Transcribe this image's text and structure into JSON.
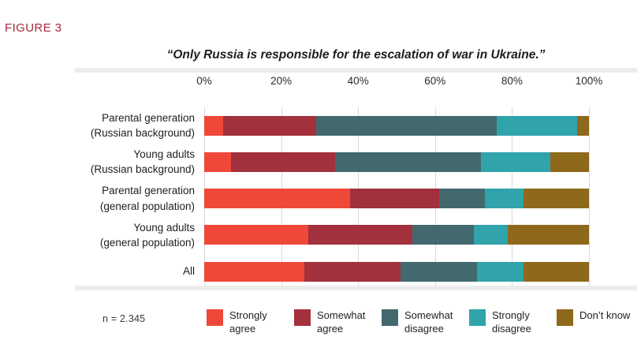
{
  "figure_label": "FIGURE 3",
  "title": "“Only Russia is responsible for the escalation of war in Ukraine.”",
  "note": "n = 2.345",
  "chart_data": {
    "type": "bar",
    "stacked": true,
    "orientation": "horizontal",
    "title": "“Only Russia is responsible for the escalation of war in Ukraine.”",
    "x_axis": {
      "position": "top",
      "min": 0,
      "max": 100,
      "ticks": [
        "0%",
        "20%",
        "40%",
        "60%",
        "80%",
        "100%"
      ],
      "grid": "vertical-light-gray"
    },
    "categories": [
      "Parental generation (Russian background)",
      "Young adults (Russian background)",
      "Parental generation (general population)",
      "Young adults (general population)",
      "All"
    ],
    "category_label_lines": [
      [
        "Parental generation",
        "(Russian background)"
      ],
      [
        "Young adults",
        "(Russian background)"
      ],
      [
        "Parental generation",
        "(general population)"
      ],
      [
        "Young adults",
        "(general population)"
      ],
      [
        "All"
      ]
    ],
    "series": [
      {
        "name": "Strongly agree",
        "color": "#EF4839",
        "values": [
          5,
          7,
          38,
          27,
          26
        ]
      },
      {
        "name": "Somewhat agree",
        "color": "#A2303D",
        "values": [
          24,
          27,
          23,
          27,
          25
        ]
      },
      {
        "name": "Somewhat disagree",
        "color": "#42696E",
        "values": [
          47,
          38,
          12,
          16,
          20
        ]
      },
      {
        "name": "Strongly disagree",
        "color": "#30A3AB",
        "values": [
          21,
          18,
          10,
          9,
          12
        ]
      },
      {
        "name": "Don’t know",
        "color": "#8E691B",
        "values": [
          3,
          10,
          17,
          21,
          17
        ]
      }
    ],
    "legend_position": "bottom",
    "note": "n = 2.345",
    "figure_colors": {
      "figure_label": "#A6293A",
      "gridline": "#d9d9d9",
      "frame_band": "#ececec"
    }
  }
}
